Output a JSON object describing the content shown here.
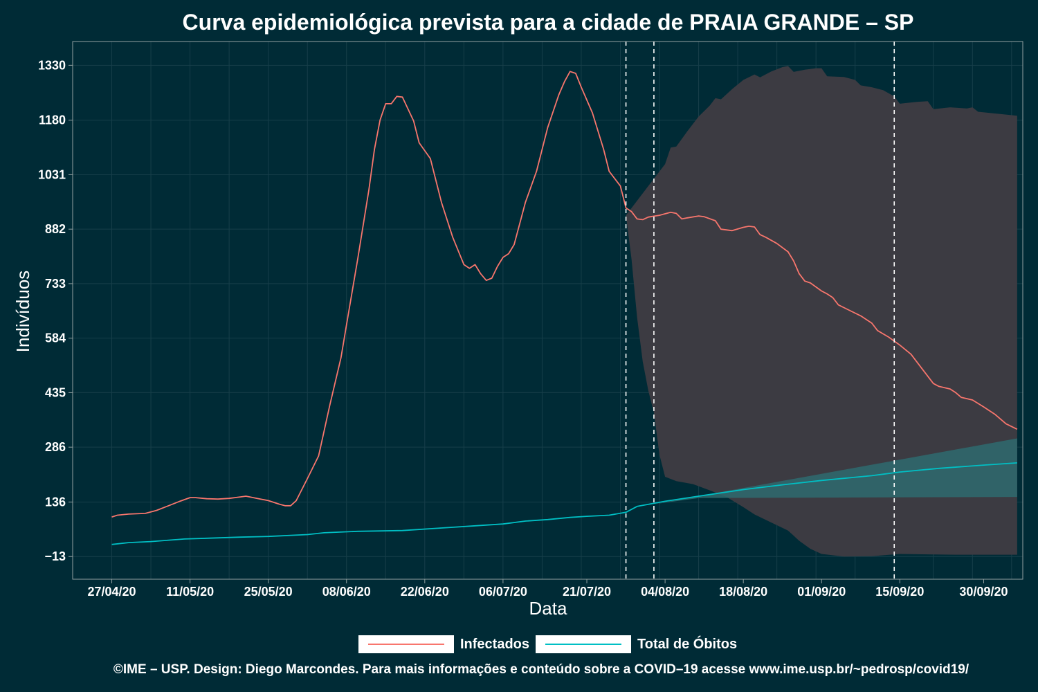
{
  "colors": {
    "background": "#002b36",
    "grid": "#173f4a",
    "axis": "#93a1a1",
    "infectados": "#f8766d",
    "obitos": "#00bfc4",
    "band_infectados": "#3c3b42",
    "band_obitos": "#2e6b6f",
    "vline": "#ffffff"
  },
  "chart_data": {
    "type": "line",
    "title": "Curva epidemiológica prevista para a cidade de PRAIA GRANDE – SP",
    "xlabel": "Data",
    "ylabel": "Indivíduos",
    "y_ticks": [
      "1330",
      "1180",
      "1031",
      "882",
      "733",
      "584",
      "435",
      "286",
      "136",
      "−13"
    ],
    "y_tick_values": [
      1330,
      1180,
      1031,
      882,
      733,
      584,
      435,
      286,
      136,
      -13
    ],
    "ylim": [
      -75,
      1395
    ],
    "x_ticks": [
      "27/04/20",
      "11/05/20",
      "25/05/20",
      "08/06/20",
      "22/06/20",
      "06/07/20",
      "21/07/20",
      "04/08/20",
      "18/08/20",
      "01/09/20",
      "15/09/20",
      "30/09/20"
    ],
    "xlim": [
      "2020-04-20",
      "2020-10-07"
    ],
    "x_tick_dates": [
      "2020-04-27",
      "2020-05-11",
      "2020-05-25",
      "2020-06-08",
      "2020-06-22",
      "2020-07-06",
      "2020-07-21",
      "2020-08-04",
      "2020-08-18",
      "2020-09-01",
      "2020-09-15",
      "2020-09-30"
    ],
    "vertical_lines": [
      "2020-07-28",
      "2020-08-02",
      "2020-09-14"
    ],
    "grid": true,
    "legend_position": "bottom",
    "series": [
      {
        "name": "Infectados",
        "points": [
          [
            "2020-04-27",
            95
          ],
          [
            "2020-04-28",
            100
          ],
          [
            "2020-04-30",
            103
          ],
          [
            "2020-05-03",
            105
          ],
          [
            "2020-05-05",
            113
          ],
          [
            "2020-05-07",
            125
          ],
          [
            "2020-05-09",
            137
          ],
          [
            "2020-05-11",
            148
          ],
          [
            "2020-05-12",
            148
          ],
          [
            "2020-05-14",
            145
          ],
          [
            "2020-05-16",
            144
          ],
          [
            "2020-05-18",
            146
          ],
          [
            "2020-05-20",
            150
          ],
          [
            "2020-05-21",
            152
          ],
          [
            "2020-05-23",
            146
          ],
          [
            "2020-05-25",
            140
          ],
          [
            "2020-05-27",
            130
          ],
          [
            "2020-05-28",
            126
          ],
          [
            "2020-05-29",
            126
          ],
          [
            "2020-05-30",
            140
          ],
          [
            "2020-06-01",
            200
          ],
          [
            "2020-06-03",
            262
          ],
          [
            "2020-06-05",
            400
          ],
          [
            "2020-06-07",
            530
          ],
          [
            "2020-06-08",
            620
          ],
          [
            "2020-06-10",
            800
          ],
          [
            "2020-06-12",
            990
          ],
          [
            "2020-06-13",
            1100
          ],
          [
            "2020-06-14",
            1180
          ],
          [
            "2020-06-15",
            1225
          ],
          [
            "2020-06-16",
            1225
          ],
          [
            "2020-06-17",
            1245
          ],
          [
            "2020-06-18",
            1243
          ],
          [
            "2020-06-20",
            1178
          ],
          [
            "2020-06-21",
            1118
          ],
          [
            "2020-06-23",
            1075
          ],
          [
            "2020-06-25",
            955
          ],
          [
            "2020-06-27",
            860
          ],
          [
            "2020-06-29",
            785
          ],
          [
            "2020-06-30",
            775
          ],
          [
            "2020-07-01",
            785
          ],
          [
            "2020-07-02",
            760
          ],
          [
            "2020-07-03",
            742
          ],
          [
            "2020-07-04",
            748
          ],
          [
            "2020-07-05",
            780
          ],
          [
            "2020-07-06",
            805
          ],
          [
            "2020-07-07",
            815
          ],
          [
            "2020-07-08",
            840
          ],
          [
            "2020-07-10",
            955
          ],
          [
            "2020-07-12",
            1040
          ],
          [
            "2020-07-14",
            1160
          ],
          [
            "2020-07-16",
            1250
          ],
          [
            "2020-07-17",
            1285
          ],
          [
            "2020-07-18",
            1313
          ],
          [
            "2020-07-19",
            1308
          ],
          [
            "2020-07-20",
            1270
          ],
          [
            "2020-07-22",
            1200
          ],
          [
            "2020-07-24",
            1100
          ],
          [
            "2020-07-25",
            1040
          ],
          [
            "2020-07-27",
            1000
          ],
          [
            "2020-07-28",
            940
          ],
          [
            "2020-07-29",
            930
          ],
          [
            "2020-07-30",
            910
          ],
          [
            "2020-07-31",
            908
          ],
          [
            "2020-08-01",
            915
          ],
          [
            "2020-08-03",
            920
          ],
          [
            "2020-08-05",
            928
          ],
          [
            "2020-08-06",
            925
          ],
          [
            "2020-08-07",
            910
          ],
          [
            "2020-08-08",
            913
          ],
          [
            "2020-08-10",
            918
          ],
          [
            "2020-08-11",
            916
          ],
          [
            "2020-08-13",
            905
          ],
          [
            "2020-08-14",
            882
          ],
          [
            "2020-08-16",
            878
          ],
          [
            "2020-08-18",
            887
          ],
          [
            "2020-08-19",
            890
          ],
          [
            "2020-08-20",
            888
          ],
          [
            "2020-08-21",
            867
          ],
          [
            "2020-08-22",
            860
          ],
          [
            "2020-08-24",
            843
          ],
          [
            "2020-08-26",
            820
          ],
          [
            "2020-08-27",
            795
          ],
          [
            "2020-08-28",
            760
          ],
          [
            "2020-08-29",
            740
          ],
          [
            "2020-08-30",
            735
          ],
          [
            "2020-09-01",
            713
          ],
          [
            "2020-09-02",
            705
          ],
          [
            "2020-09-03",
            695
          ],
          [
            "2020-09-04",
            675
          ],
          [
            "2020-09-06",
            660
          ],
          [
            "2020-09-08",
            645
          ],
          [
            "2020-09-10",
            625
          ],
          [
            "2020-09-11",
            605
          ],
          [
            "2020-09-13",
            587
          ],
          [
            "2020-09-15",
            565
          ],
          [
            "2020-09-17",
            540
          ],
          [
            "2020-09-19",
            500
          ],
          [
            "2020-09-21",
            460
          ],
          [
            "2020-09-22",
            452
          ],
          [
            "2020-09-24",
            445
          ],
          [
            "2020-09-25",
            435
          ],
          [
            "2020-09-26",
            422
          ],
          [
            "2020-09-28",
            415
          ],
          [
            "2020-09-30",
            396
          ],
          [
            "2020-10-02",
            376
          ],
          [
            "2020-10-04",
            350
          ],
          [
            "2020-10-06",
            335
          ]
        ]
      },
      {
        "name": "Total de Óbitos",
        "points": [
          [
            "2020-04-27",
            20
          ],
          [
            "2020-04-30",
            25
          ],
          [
            "2020-05-04",
            28
          ],
          [
            "2020-05-10",
            35
          ],
          [
            "2020-05-14",
            37
          ],
          [
            "2020-05-20",
            40
          ],
          [
            "2020-05-25",
            42
          ],
          [
            "2020-06-01",
            47
          ],
          [
            "2020-06-04",
            52
          ],
          [
            "2020-06-10",
            56
          ],
          [
            "2020-06-18",
            58
          ],
          [
            "2020-06-25",
            65
          ],
          [
            "2020-07-02",
            72
          ],
          [
            "2020-07-06",
            76
          ],
          [
            "2020-07-10",
            84
          ],
          [
            "2020-07-14",
            88
          ],
          [
            "2020-07-18",
            94
          ],
          [
            "2020-07-21",
            97
          ],
          [
            "2020-07-25",
            100
          ],
          [
            "2020-07-28",
            108
          ],
          [
            "2020-07-30",
            124
          ],
          [
            "2020-08-04",
            138
          ],
          [
            "2020-08-10",
            152
          ],
          [
            "2020-08-18",
            170
          ],
          [
            "2020-08-25",
            183
          ],
          [
            "2020-09-01",
            195
          ],
          [
            "2020-09-10",
            208
          ],
          [
            "2020-09-15",
            218
          ],
          [
            "2020-09-22",
            228
          ],
          [
            "2020-09-30",
            237
          ],
          [
            "2020-10-06",
            243
          ]
        ]
      }
    ],
    "bands": [
      {
        "series": "Infectados",
        "upper": [
          [
            "2020-07-28",
            920
          ],
          [
            "2020-08-01",
            1000
          ],
          [
            "2020-08-04",
            1060
          ],
          [
            "2020-08-05",
            1105
          ],
          [
            "2020-08-06",
            1108
          ],
          [
            "2020-08-08",
            1150
          ],
          [
            "2020-08-10",
            1190
          ],
          [
            "2020-08-12",
            1220
          ],
          [
            "2020-08-13",
            1240
          ],
          [
            "2020-08-14",
            1237
          ],
          [
            "2020-08-16",
            1265
          ],
          [
            "2020-08-18",
            1290
          ],
          [
            "2020-08-20",
            1305
          ],
          [
            "2020-08-21",
            1297
          ],
          [
            "2020-08-23",
            1313
          ],
          [
            "2020-08-25",
            1325
          ],
          [
            "2020-08-26",
            1328
          ],
          [
            "2020-08-27",
            1312
          ],
          [
            "2020-08-29",
            1318
          ],
          [
            "2020-08-31",
            1322
          ],
          [
            "2020-09-01",
            1322
          ],
          [
            "2020-09-02",
            1300
          ],
          [
            "2020-09-05",
            1298
          ],
          [
            "2020-09-07",
            1290
          ],
          [
            "2020-09-08",
            1275
          ],
          [
            "2020-09-10",
            1270
          ],
          [
            "2020-09-12",
            1262
          ],
          [
            "2020-09-14",
            1245
          ],
          [
            "2020-09-15",
            1225
          ],
          [
            "2020-09-18",
            1230
          ],
          [
            "2020-09-20",
            1232
          ],
          [
            "2020-09-21",
            1210
          ],
          [
            "2020-09-24",
            1215
          ],
          [
            "2020-09-27",
            1212
          ],
          [
            "2020-09-28",
            1215
          ],
          [
            "2020-09-29",
            1203
          ],
          [
            "2020-10-06",
            1192
          ]
        ],
        "lower": [
          [
            "2020-07-28",
            920
          ],
          [
            "2020-07-29",
            800
          ],
          [
            "2020-07-30",
            640
          ],
          [
            "2020-07-31",
            520
          ],
          [
            "2020-08-01",
            440
          ],
          [
            "2020-08-02",
            380
          ],
          [
            "2020-08-03",
            265
          ],
          [
            "2020-08-04",
            205
          ],
          [
            "2020-08-06",
            193
          ],
          [
            "2020-08-09",
            185
          ],
          [
            "2020-08-12",
            168
          ],
          [
            "2020-08-15",
            150
          ],
          [
            "2020-08-18",
            122
          ],
          [
            "2020-08-20",
            102
          ],
          [
            "2020-08-23",
            80
          ],
          [
            "2020-08-26",
            58
          ],
          [
            "2020-08-28",
            30
          ],
          [
            "2020-08-30",
            8
          ],
          [
            "2020-09-01",
            -6
          ],
          [
            "2020-09-05",
            -13
          ],
          [
            "2020-09-10",
            -12
          ],
          [
            "2020-09-15",
            -6
          ],
          [
            "2020-09-20",
            -7
          ],
          [
            "2020-09-25",
            -8
          ],
          [
            "2020-10-06",
            -8
          ]
        ]
      },
      {
        "series": "Total de Óbitos",
        "upper": [
          [
            "2020-08-02",
            130
          ],
          [
            "2020-10-06",
            310
          ]
        ],
        "lower": [
          [
            "2020-08-02",
            130
          ],
          [
            "2020-08-10",
            147
          ],
          [
            "2020-10-06",
            150
          ]
        ]
      }
    ]
  },
  "legend": {
    "items": [
      {
        "label": "Infectados",
        "color": "#f8766d"
      },
      {
        "label": "Total de Óbitos",
        "color": "#00bfc4"
      }
    ]
  },
  "footer": {
    "credit": "©IME – USP. Design: Diego Marcondes. Para mais informações e conteúdo sobre a COVID–19 acesse www.ime.usp.br/~pedrosp/covid19/"
  }
}
